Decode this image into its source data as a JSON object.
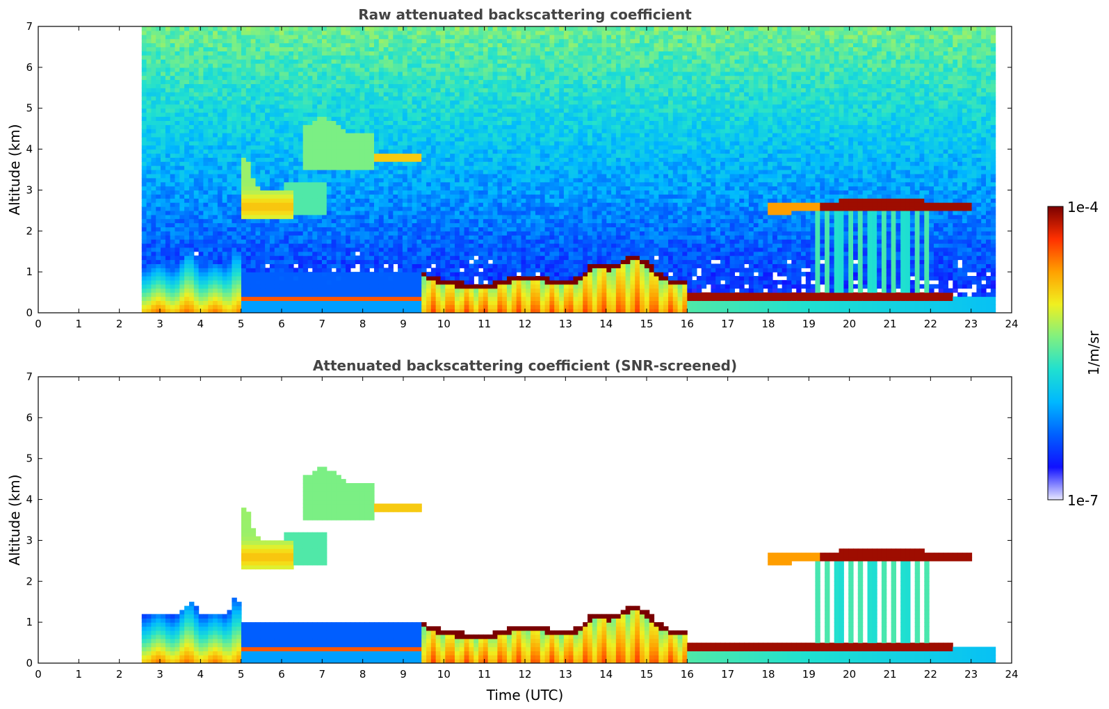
{
  "chart_data": [
    {
      "type": "heatmap",
      "title": "Raw attenuated backscattering coefficient",
      "xlabel": "",
      "ylabel": "Altitude (km)",
      "xlim": [
        0,
        24
      ],
      "ylim": [
        0,
        7
      ],
      "xticks": [
        0,
        1,
        2,
        3,
        4,
        5,
        6,
        7,
        8,
        9,
        10,
        11,
        12,
        13,
        14,
        15,
        16,
        17,
        18,
        19,
        20,
        21,
        22,
        23,
        24
      ],
      "yticks": [
        0,
        1,
        2,
        3,
        4,
        5,
        6,
        7
      ],
      "data_time_range": [
        2.55,
        23.6
      ],
      "features": [
        {
          "label": "boundary layer aerosol",
          "time": [
            2.55,
            5.0
          ],
          "altitude": [
            0,
            1.3
          ],
          "level": "high near ground"
        },
        {
          "label": "aerosol layer",
          "time": [
            5.0,
            6.3
          ],
          "altitude": [
            2.2,
            3.0
          ],
          "level": "moderate"
        },
        {
          "label": "elevated layer",
          "time": [
            6.5,
            9.5
          ],
          "altitude": [
            3.5,
            4.5
          ],
          "level": "moderate"
        },
        {
          "label": "low cloud",
          "time": [
            9.5,
            16.0
          ],
          "altitude": [
            0.3,
            1.2
          ],
          "level": "very high"
        },
        {
          "label": "stratocumulus top",
          "time": [
            16.0,
            23.0
          ],
          "altitude": [
            0.3,
            0.5
          ],
          "level": "very high"
        },
        {
          "label": "cloud layer",
          "time": [
            18.0,
            23.0
          ],
          "altitude": [
            2.4,
            2.8
          ],
          "level": "very high"
        }
      ]
    },
    {
      "type": "heatmap",
      "title": "Attenuated backscattering coefficient (SNR-screened)",
      "xlabel": "Time (UTC)",
      "ylabel": "Altitude (km)",
      "xlim": [
        0,
        24
      ],
      "ylim": [
        0,
        7
      ],
      "xticks": [
        0,
        1,
        2,
        3,
        4,
        5,
        6,
        7,
        8,
        9,
        10,
        11,
        12,
        13,
        14,
        15,
        16,
        17,
        18,
        19,
        20,
        21,
        22,
        23,
        24
      ],
      "yticks": [
        0,
        1,
        2,
        3,
        4,
        5,
        6,
        7
      ],
      "data_time_range": [
        2.55,
        23.6
      ],
      "screening": "SNR"
    }
  ],
  "colorbar": {
    "label": "1/m/sr",
    "min_label": "1e-7",
    "max_label": "1e-4",
    "scale": "log",
    "colors": [
      "#e8e8ff",
      "#1010ff",
      "#0060ff",
      "#00b8ff",
      "#20e0d0",
      "#80f080",
      "#f0f020",
      "#ffa000",
      "#ff3000",
      "#7a0000"
    ]
  }
}
